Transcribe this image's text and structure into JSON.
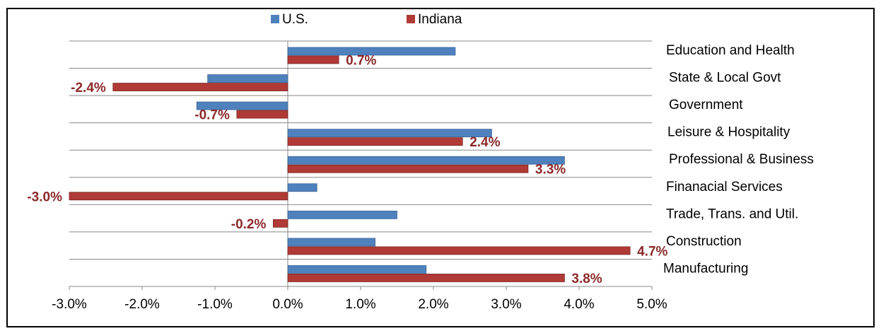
{
  "chart_data": {
    "type": "bar",
    "orientation": "horizontal",
    "categories": [
      "Education and Health",
      "State & Local Govt",
      "Government",
      "Leisure & Hospitality",
      "Professional & Business",
      "Finanacial Services",
      "Trade, Trans. and Util.",
      "Construction",
      "Manufacturing"
    ],
    "series": [
      {
        "name": "U.S.",
        "color": "#4f81bd",
        "values": [
          2.3,
          -1.1,
          -1.25,
          2.8,
          3.8,
          0.4,
          1.5,
          1.2,
          1.9
        ]
      },
      {
        "name": "Indiana",
        "color": "#b03a36",
        "values": [
          0.7,
          -2.4,
          -0.7,
          2.4,
          3.3,
          -3.0,
          -0.2,
          4.7,
          3.8
        ],
        "value_labels": [
          "0.7%",
          "-2.4%",
          "-0.7%",
          "2.4%",
          "3.3%",
          "-3.0%",
          "-0.2%",
          "4.7%",
          "3.8%"
        ]
      }
    ],
    "xlim": [
      -3,
      5
    ],
    "xticks": [
      {
        "value": -3,
        "label": "-3.0%"
      },
      {
        "value": -2,
        "label": "-2.0%"
      },
      {
        "value": -1,
        "label": "-1.0%"
      },
      {
        "value": 0,
        "label": "0.0%"
      },
      {
        "value": 1,
        "label": "1.0%"
      },
      {
        "value": 2,
        "label": "2.0%"
      },
      {
        "value": 3,
        "label": "3.0%"
      },
      {
        "value": 4,
        "label": "4.0%"
      },
      {
        "value": 5,
        "label": "5.0%"
      }
    ],
    "grid": true,
    "legend": "top"
  }
}
